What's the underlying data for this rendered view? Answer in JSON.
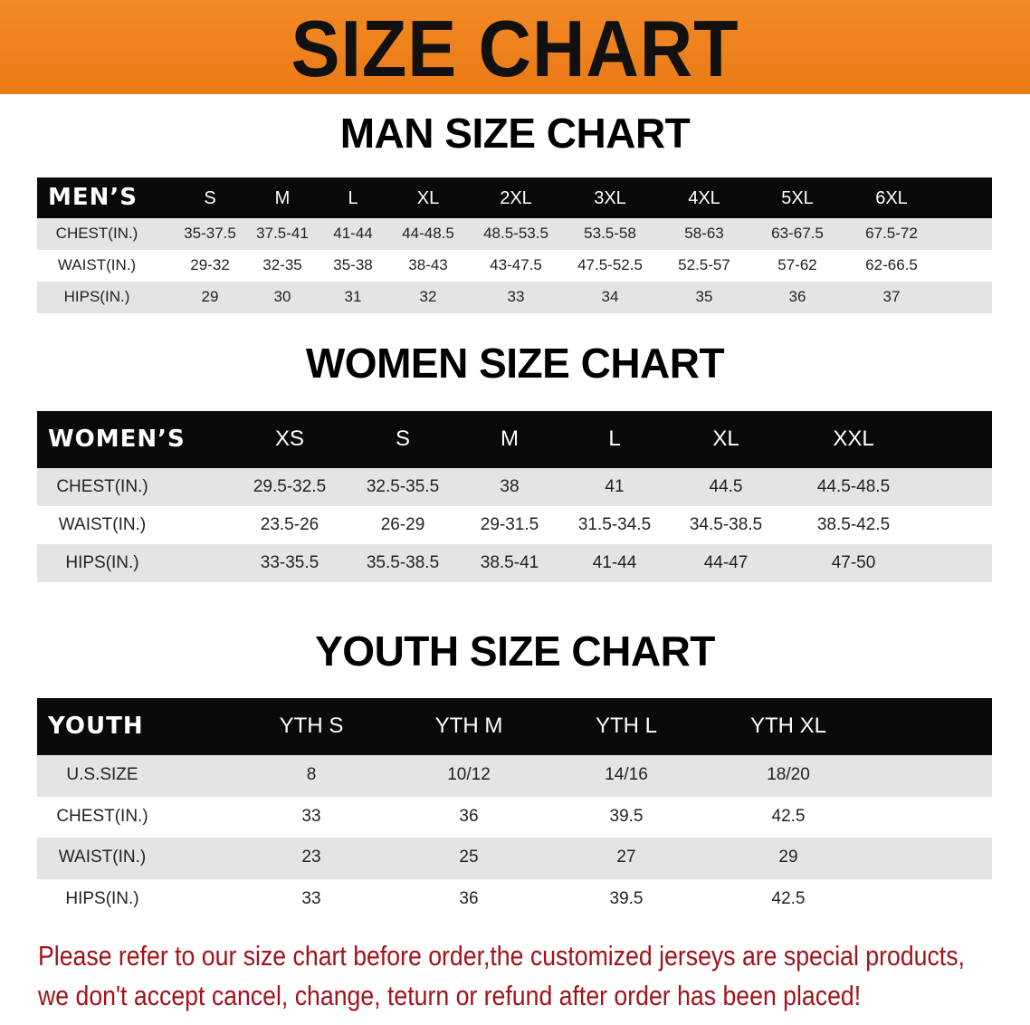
{
  "banner_title": "SIZE CHART",
  "sections": {
    "men": {
      "title": "MAN SIZE CHART",
      "header_label": "MEN’S",
      "sizes": [
        "S",
        "M",
        "L",
        "XL",
        "2XL",
        "3XL",
        "4XL",
        "5XL",
        "6XL"
      ],
      "rows": [
        {
          "label": "CHEST(IN.)",
          "values": [
            "35-37.5",
            "37.5-41",
            "41-44",
            "44-48.5",
            "48.5-53.5",
            "53.5-58",
            "58-63",
            "63-67.5",
            "67.5-72"
          ]
        },
        {
          "label": "WAIST(IN.)",
          "values": [
            "29-32",
            "32-35",
            "35-38",
            "38-43",
            "43-47.5",
            "47.5-52.5",
            "52.5-57",
            "57-62",
            "62-66.5"
          ]
        },
        {
          "label": "HIPS(IN.)",
          "values": [
            "29",
            "30",
            "31",
            "32",
            "33",
            "34",
            "35",
            "36",
            "37"
          ]
        }
      ]
    },
    "women": {
      "title": "WOMEN SIZE CHART",
      "header_label": "WOMEN’S",
      "sizes": [
        "XS",
        "S",
        "M",
        "L",
        "XL",
        "XXL"
      ],
      "rows": [
        {
          "label": "CHEST(IN.)",
          "values": [
            "29.5-32.5",
            "32.5-35.5",
            "38",
            "41",
            "44.5",
            "44.5-48.5"
          ]
        },
        {
          "label": "WAIST(IN.)",
          "values": [
            "23.5-26",
            "26-29",
            "29-31.5",
            "31.5-34.5",
            "34.5-38.5",
            "38.5-42.5"
          ]
        },
        {
          "label": "HIPS(IN.)",
          "values": [
            "33-35.5",
            "35.5-38.5",
            "38.5-41",
            "41-44",
            "44-47",
            "47-50"
          ]
        }
      ]
    },
    "youth": {
      "title": "YOUTH SIZE CHART",
      "header_label": "YOUTH",
      "sizes": [
        "YTH S",
        "YTH M",
        "YTH L",
        "YTH XL"
      ],
      "rows": [
        {
          "label": "U.S.SIZE",
          "values": [
            "8",
            "10/12",
            "14/16",
            "18/20"
          ]
        },
        {
          "label": "CHEST(IN.)",
          "values": [
            "33",
            "36",
            "39.5",
            "42.5"
          ]
        },
        {
          "label": "WAIST(IN.)",
          "values": [
            "23",
            "25",
            "27",
            "29"
          ]
        },
        {
          "label": "HIPS(IN.)",
          "values": [
            "33",
            "36",
            "39.5",
            "42.5"
          ]
        }
      ]
    }
  },
  "note_lines": [
    "Please refer to our size chart before order,the customized jerseys are special products,",
    "we don't accept cancel, change, teturn or refund after order has been placed!"
  ],
  "colors": {
    "banner": "#ef8220",
    "header_row": "#0a0a0a",
    "stripe": "#e4e4e4",
    "note": "#a3121a"
  },
  "chart_data": [
    {
      "type": "table",
      "title": "MAN SIZE CHART",
      "columns": [
        "MEN’S",
        "S",
        "M",
        "L",
        "XL",
        "2XL",
        "3XL",
        "4XL",
        "5XL",
        "6XL"
      ]
    },
    {
      "type": "table",
      "title": "WOMEN SIZE CHART",
      "columns": [
        "WOMEN’S",
        "XS",
        "S",
        "M",
        "L",
        "XL",
        "XXL"
      ]
    },
    {
      "type": "table",
      "title": "YOUTH SIZE CHART",
      "columns": [
        "YOUTH",
        "YTH S",
        "YTH M",
        "YTH L",
        "YTH XL"
      ]
    }
  ]
}
